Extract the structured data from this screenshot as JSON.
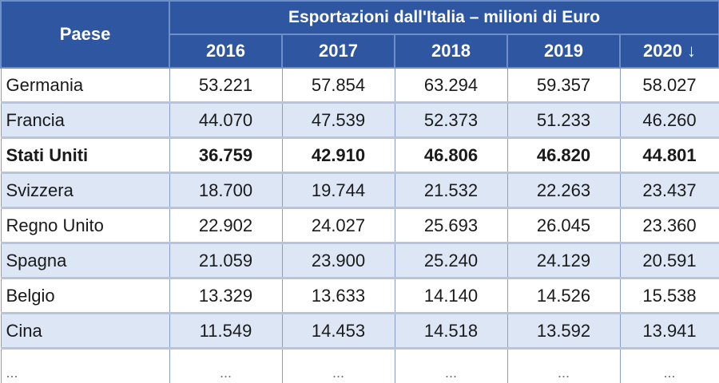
{
  "header": {
    "country_label": "Paese",
    "group_title": "Esportazioni dall'Italia – milioni di Euro",
    "years": [
      "2016",
      "2017",
      "2018",
      "2019",
      "2020 ↓"
    ]
  },
  "rows": [
    {
      "country": "Germania",
      "values": [
        "53.221",
        "57.854",
        "63.294",
        "59.357",
        "58.027"
      ]
    },
    {
      "country": "Francia",
      "values": [
        "44.070",
        "47.539",
        "52.373",
        "51.233",
        "46.260"
      ]
    },
    {
      "country": "Stati Uniti",
      "values": [
        "36.759",
        "42.910",
        "46.806",
        "46.820",
        "44.801"
      ]
    },
    {
      "country": "Svizzera",
      "values": [
        "18.700",
        "19.744",
        "21.532",
        "22.263",
        "23.437"
      ]
    },
    {
      "country": "Regno Unito",
      "values": [
        "22.902",
        "24.027",
        "25.693",
        "26.045",
        "23.360"
      ]
    },
    {
      "country": "Spagna",
      "values": [
        "21.059",
        "23.900",
        "25.240",
        "24.129",
        "20.591"
      ]
    },
    {
      "country": "Belgio",
      "values": [
        "13.329",
        "13.633",
        "14.140",
        "14.526",
        "15.538"
      ]
    },
    {
      "country": "Cina",
      "values": [
        "11.549",
        "14.453",
        "14.518",
        "13.592",
        "13.941"
      ]
    },
    {
      "country": "...",
      "values": [
        "...",
        "...",
        "...",
        "...",
        "..."
      ]
    }
  ]
}
